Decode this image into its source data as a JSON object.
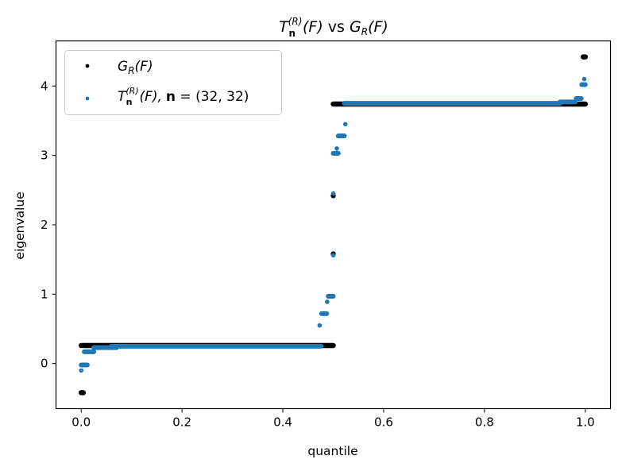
{
  "chart_data": {
    "type": "scatter",
    "title": {
      "prefix": "T",
      "sup": "(R)",
      "sub": "n",
      "arg1": "(F)",
      "mid": " vs ",
      "g": "G",
      "gsub": "R",
      "arg2": "(F)"
    },
    "xlabel": "quantile",
    "ylabel": "eigenvalue",
    "xlim": [
      -0.05,
      1.05
    ],
    "ylim": [
      -0.65,
      4.65
    ],
    "xticks": [
      0.0,
      0.2,
      0.4,
      0.6,
      0.8,
      1.0
    ],
    "xtick_labels": [
      "0.0",
      "0.2",
      "0.4",
      "0.6",
      "0.8",
      "1.0"
    ],
    "yticks": [
      0,
      1,
      2,
      3,
      4
    ],
    "ytick_labels": [
      "0",
      "1",
      "2",
      "3",
      "4"
    ],
    "legend_position": "top-left",
    "series": [
      {
        "name": "G_R(F)",
        "legend": {
          "g": "G",
          "sub": "R",
          "arg": "(F)"
        },
        "color": "#000000",
        "segments": [
          {
            "x0": 0.0,
            "x1": 0.004,
            "y": -0.42
          },
          {
            "x0": 0.0,
            "x1": 0.5,
            "y": 0.26
          },
          {
            "x0": 0.5,
            "x1": 1.0,
            "y": 3.74
          },
          {
            "x0": 0.996,
            "x1": 1.0,
            "y": 4.42
          }
        ],
        "points": [
          [
            0.5,
            2.42
          ],
          [
            0.5,
            1.58
          ]
        ]
      },
      {
        "name": "T_n^(R)(F), n = (32, 32)",
        "legend": {
          "t": "T",
          "sup": "(R)",
          "sub": "n",
          "arg": "(F),",
          "n": "n",
          "eq": " = (32, 32)"
        },
        "color": "#1f77b4",
        "segments": [
          {
            "x0": 0.0,
            "x1": 0.012,
            "y": -0.02
          },
          {
            "x0": 0.006,
            "x1": 0.025,
            "y": 0.17
          },
          {
            "x0": 0.025,
            "x1": 0.07,
            "y": 0.23
          },
          {
            "x0": 0.06,
            "x1": 0.476,
            "y": 0.25
          },
          {
            "x0": 0.477,
            "x1": 0.487,
            "y": 0.72
          },
          {
            "x0": 0.49,
            "x1": 0.5,
            "y": 0.97
          },
          {
            "x0": 0.5,
            "x1": 0.51,
            "y": 3.03
          },
          {
            "x0": 0.51,
            "x1": 0.522,
            "y": 3.28
          },
          {
            "x0": 0.522,
            "x1": 0.95,
            "y": 3.75
          },
          {
            "x0": 0.95,
            "x1": 0.98,
            "y": 3.77
          },
          {
            "x0": 0.982,
            "x1": 0.992,
            "y": 3.82
          },
          {
            "x0": 0.993,
            "x1": 1.0,
            "y": 4.02
          }
        ],
        "points": [
          [
            0.0,
            -0.1
          ],
          [
            0.473,
            0.55
          ],
          [
            0.488,
            0.89
          ],
          [
            0.5,
            1.56
          ],
          [
            0.5,
            2.45
          ],
          [
            0.507,
            3.1
          ],
          [
            0.524,
            3.45
          ],
          [
            0.998,
            4.1
          ]
        ]
      }
    ]
  }
}
